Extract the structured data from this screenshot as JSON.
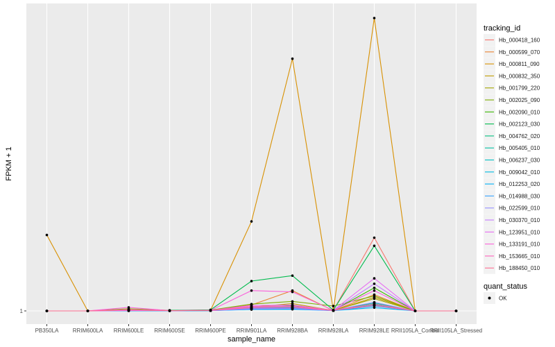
{
  "chart_data": {
    "type": "line",
    "xlabel": "sample_name",
    "ylabel": "FPKM + 1",
    "ytick_labels": [
      "1"
    ],
    "ylim": [
      0,
      100
    ],
    "categories": [
      "PB350LA",
      "RRIM600LA",
      "RRIM600LE",
      "RRIM600SE",
      "RRIM600PE",
      "RRIM901LA",
      "RRIM928BA",
      "RRIM928LA",
      "RRIM928LE",
      "RRII105LA_Control",
      "RRII105LA_Stressed"
    ],
    "legend_title": "tracking_id",
    "legend2_title": "quant_status",
    "legend2_label": "OK",
    "series": [
      {
        "name": "Hb_000418_160",
        "color": "#F8766D",
        "values": [
          0,
          0,
          0.2,
          0.1,
          0.1,
          1.6,
          1.8,
          0.2,
          27,
          0,
          0
        ]
      },
      {
        "name": "Hb_000599_070",
        "color": "#EA8331",
        "values": [
          0,
          0,
          0.1,
          0.1,
          0.2,
          2.2,
          7.5,
          0.1,
          6,
          0,
          0
        ]
      },
      {
        "name": "Hb_000811_090",
        "color": "#D89000",
        "values": [
          28,
          0,
          0.2,
          0.1,
          0.2,
          33,
          93,
          0.2,
          108,
          0,
          0
        ]
      },
      {
        "name": "Hb_000832_350",
        "color": "#C09B00",
        "values": [
          0,
          0,
          0.2,
          0.1,
          0.1,
          1.4,
          2.7,
          0.1,
          5,
          0,
          0
        ]
      },
      {
        "name": "Hb_001799_220",
        "color": "#A3A500",
        "values": [
          0,
          0,
          0.1,
          0.1,
          0.1,
          0.9,
          1.3,
          0.2,
          4.5,
          0,
          0
        ]
      },
      {
        "name": "Hb_002025_090",
        "color": "#7CAE00",
        "values": [
          0,
          0,
          0.8,
          0.2,
          0.3,
          2.5,
          3.5,
          1.8,
          5.5,
          0,
          0
        ]
      },
      {
        "name": "Hb_002090_010",
        "color": "#39B600",
        "values": [
          0,
          0,
          0.3,
          0.1,
          0.3,
          1.2,
          2.0,
          0.2,
          8.5,
          0,
          0
        ]
      },
      {
        "name": "Hb_002123_030",
        "color": "#00BB4E",
        "values": [
          0,
          0,
          0.2,
          0.2,
          0.4,
          11,
          13,
          0.3,
          24,
          0,
          0
        ]
      },
      {
        "name": "Hb_004762_020",
        "color": "#00BF7D",
        "values": [
          0,
          0,
          0.1,
          0.1,
          0.1,
          0.8,
          1.0,
          0.1,
          2.6,
          0,
          0
        ]
      },
      {
        "name": "Hb_005405_010",
        "color": "#00C1A3",
        "values": [
          0,
          0,
          0.1,
          0.1,
          0.1,
          0.9,
          1.2,
          0.1,
          3,
          0,
          0
        ]
      },
      {
        "name": "Hb_006237_030",
        "color": "#00BFC4",
        "values": [
          0,
          0,
          0.1,
          0.0,
          0.1,
          0.6,
          0.8,
          0.1,
          2.2,
          0,
          0
        ]
      },
      {
        "name": "Hb_009042_010",
        "color": "#00BAE0",
        "values": [
          0,
          0,
          0.1,
          0.1,
          0.1,
          0.7,
          0.9,
          0.1,
          1.8,
          0,
          0
        ]
      },
      {
        "name": "Hb_012253_020",
        "color": "#00B0F6",
        "values": [
          0,
          0,
          0.0,
          0.0,
          0.1,
          0.5,
          0.6,
          0.1,
          1.2,
          0,
          0
        ]
      },
      {
        "name": "Hb_014988_030",
        "color": "#35A2FF",
        "values": [
          0,
          0,
          0.1,
          0.1,
          0.1,
          1.0,
          1.1,
          0.1,
          2.0,
          0,
          0
        ]
      },
      {
        "name": "Hb_022599_010",
        "color": "#9590FF",
        "values": [
          0,
          0,
          0.2,
          0.1,
          0.2,
          1.4,
          1.6,
          0.2,
          3.2,
          0,
          0
        ]
      },
      {
        "name": "Hb_030370_010",
        "color": "#C77CFF",
        "values": [
          0,
          0,
          0.1,
          0.1,
          0.1,
          0.8,
          0.9,
          0.1,
          10,
          0,
          0
        ]
      },
      {
        "name": "Hb_123951_010",
        "color": "#E76BF3",
        "values": [
          0,
          0,
          0.2,
          0.1,
          0.2,
          2.0,
          2.2,
          0.2,
          12,
          0,
          0
        ]
      },
      {
        "name": "Hb_133191_010",
        "color": "#FA62DB",
        "values": [
          0,
          0,
          1.3,
          0.1,
          0.2,
          7.5,
          7.0,
          0.2,
          7.5,
          0,
          0
        ]
      },
      {
        "name": "Hb_153665_010",
        "color": "#FF62BC",
        "values": [
          0,
          0,
          0.5,
          0.1,
          0.2,
          1.6,
          1.8,
          0.2,
          2.0,
          0,
          0
        ]
      },
      {
        "name": "Hb_188450_010",
        "color": "#FF6C91",
        "values": [
          0,
          0,
          0.3,
          0.1,
          0.2,
          1.2,
          1.4,
          0.2,
          2.5,
          0,
          0
        ]
      }
    ]
  }
}
